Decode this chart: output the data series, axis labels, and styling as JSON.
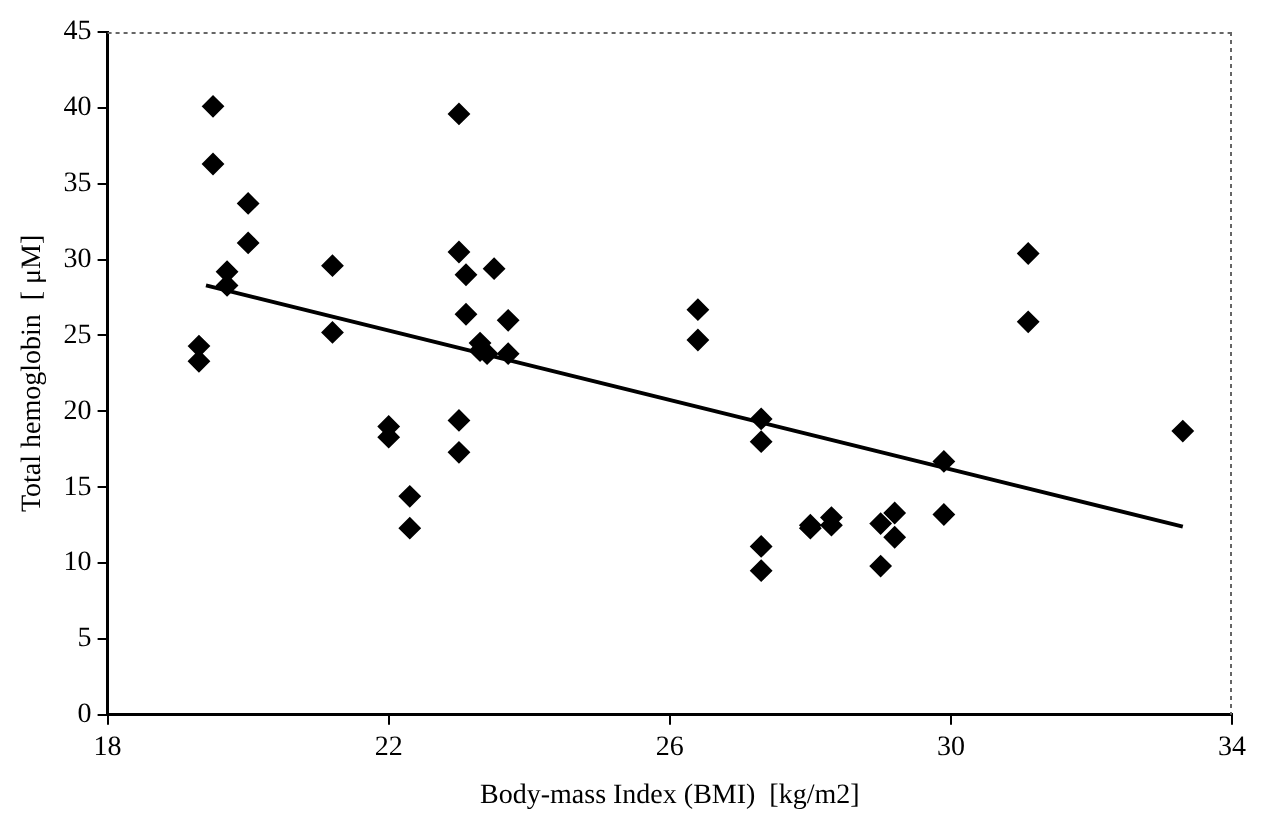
{
  "chart_data": {
    "type": "scatter",
    "xlabel": "Body-mass Index (BMI)  [kg/m2]",
    "ylabel": "Total hemoglobin  [ μM]",
    "xlim": [
      18,
      34
    ],
    "xticks": [
      18,
      22,
      26,
      30,
      34
    ],
    "ylim": [
      0,
      45
    ],
    "yticks": [
      0,
      5,
      10,
      15,
      20,
      25,
      30,
      35,
      40,
      45
    ],
    "grid": false,
    "legend": false,
    "series": [
      {
        "color": "#000000",
        "marker": "diamond",
        "x": [
          19.3,
          19.3,
          19.5,
          19.5,
          19.7,
          19.7,
          20.0,
          20.0,
          21.2,
          21.2,
          22.0,
          22.0,
          22.3,
          22.3,
          23.0,
          23.0,
          23.0,
          23.0,
          23.1,
          23.1,
          23.3,
          23.3,
          23.4,
          23.5,
          23.7,
          23.7,
          26.4,
          26.4,
          27.3,
          27.3,
          27.3,
          27.3,
          28.0,
          28.0,
          28.3,
          28.3,
          29.0,
          29.0,
          29.2,
          29.2,
          29.9,
          29.9,
          31.1,
          31.1,
          33.3
        ],
        "values": [
          24.3,
          23.3,
          40.1,
          36.3,
          29.2,
          28.3,
          33.7,
          31.1,
          29.6,
          25.2,
          19.0,
          18.3,
          14.4,
          12.3,
          39.6,
          30.5,
          19.4,
          17.3,
          26.4,
          29.0,
          24.5,
          24.0,
          23.8,
          29.4,
          26.0,
          23.8,
          26.7,
          24.7,
          19.5,
          18.0,
          11.1,
          9.5,
          12.5,
          12.3,
          13.0,
          12.5,
          12.6,
          9.8,
          13.3,
          11.7,
          16.7,
          13.2,
          30.4,
          25.9,
          18.7
        ]
      },
      {
        "type": "line",
        "color": "#000000",
        "marker": "none",
        "line_style": "solid",
        "x": [
          19.4,
          33.3
        ],
        "values": [
          28.3,
          12.4
        ]
      }
    ]
  }
}
